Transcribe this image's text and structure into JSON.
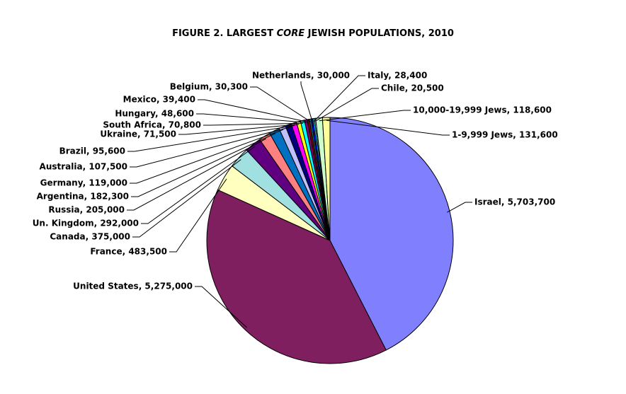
{
  "chart_data": {
    "type": "pie",
    "title_parts": {
      "before": "FIGURE 2. LARGEST ",
      "emphasis": "CORE",
      "after": " JEWISH POPULATIONS, 2010"
    },
    "slices": [
      {
        "label": "Israel",
        "display": "5,703,700",
        "value": 5703700,
        "color": "#8080ff"
      },
      {
        "label": "United States",
        "display": "5,275,000",
        "value": 5275000,
        "color": "#801f5f"
      },
      {
        "label": "France",
        "display": "483,500",
        "value": 483500,
        "color": "#ffffc0"
      },
      {
        "label": "Canada",
        "display": "375,000",
        "value": 375000,
        "color": "#a0e0e0"
      },
      {
        "label": "Un. Kingdom",
        "display": "292,000",
        "value": 292000,
        "color": "#600080"
      },
      {
        "label": "Russia",
        "display": "205,000",
        "value": 205000,
        "color": "#ff8080"
      },
      {
        "label": "Argentina",
        "display": "182,300",
        "value": 182300,
        "color": "#0070c0"
      },
      {
        "label": "Germany",
        "display": "119,000",
        "value": 119000,
        "color": "#c0c0ff"
      },
      {
        "label": "Australia",
        "display": "107,500",
        "value": 107500,
        "color": "#000080"
      },
      {
        "label": "Brazil",
        "display": "95,600",
        "value": 95600,
        "color": "#ff00ff"
      },
      {
        "label": "Ukraine",
        "display": "71,500",
        "value": 71500,
        "color": "#ffff00"
      },
      {
        "label": "South Africa",
        "display": "70,800",
        "value": 70800,
        "color": "#00ffff"
      },
      {
        "label": "Hungary",
        "display": "48,600",
        "value": 48600,
        "color": "#800080"
      },
      {
        "label": "Mexico",
        "display": "39,400",
        "value": 39400,
        "color": "#800000"
      },
      {
        "label": "Belgium",
        "display": "30,300",
        "value": 30300,
        "color": "#008080"
      },
      {
        "label": "Netherlands",
        "display": "30,000",
        "value": 30000,
        "color": "#0000ff"
      },
      {
        "label": "Italy",
        "display": "28,400",
        "value": 28400,
        "color": "#00ccff"
      },
      {
        "label": "Chile",
        "display": "20,500",
        "value": 20500,
        "color": "#ccffff"
      },
      {
        "label": "10,000-19,999 Jews",
        "display": "118,600",
        "value": 118600,
        "color": "#ccffcc"
      },
      {
        "label": "1-9,999 Jews",
        "display": "131,600",
        "value": 131600,
        "color": "#ffff99"
      }
    ]
  }
}
